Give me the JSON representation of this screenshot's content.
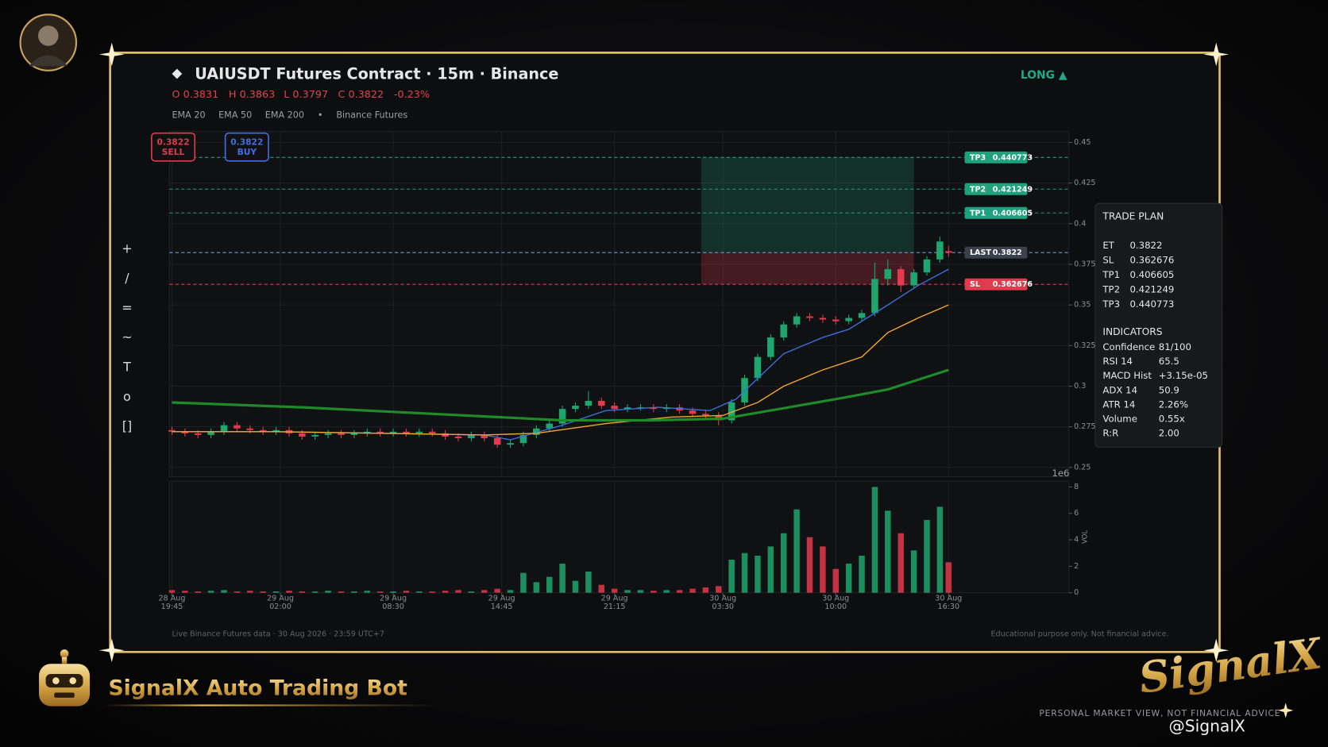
{
  "header": {
    "title": "UAIUSDT Futures Contract  ·  15m  ·  Binance",
    "ohlc": [
      "O 0.3831",
      "H 0.3863",
      "L 0.3797",
      "C 0.3822",
      "-0.23%"
    ],
    "source": "Binance Futures",
    "direction": "LONG ▲"
  },
  "buttons": [
    {
      "price": "0.3822",
      "label": "SELL"
    },
    {
      "price": "0.3822",
      "label": "BUY"
    }
  ],
  "toolbar": [
    "+",
    "/",
    "=",
    "~",
    "T",
    "o",
    "[]"
  ],
  "trade_plan": {
    "title": "TRADE PLAN",
    "rows": [
      [
        "ET",
        "0.3822"
      ],
      [
        "SL",
        "0.362676"
      ],
      [
        "TP1",
        "0.406605"
      ],
      [
        "TP2",
        "0.421249"
      ],
      [
        "TP3",
        "0.440773"
      ]
    ],
    "indicators_title": "INDICATORS",
    "indicators": [
      [
        "Confidence",
        "81/100"
      ],
      [
        "RSI 14",
        "65.5"
      ],
      [
        "MACD Hist",
        "+3.15e-05"
      ],
      [
        "ADX 14",
        "50.9"
      ],
      [
        "ATR 14",
        "2.26%"
      ],
      [
        "Volume",
        "0.55x"
      ],
      [
        "R:R",
        "2.00"
      ]
    ]
  },
  "footer": {
    "left": "Live Binance Futures data  ·  30 Aug 2026  ·  23:59 UTC+7",
    "right": "Educational purpose only. Not financial advice."
  },
  "branding": {
    "bot": "SignalX Auto Trading Bot",
    "logo": "SignalX",
    "tagline": "PERSONAL MARKET VIEW, NOT FINANCIAL ADVICE",
    "watermark": "@SignalX"
  },
  "chart_data": [
    {
      "type": "candlestick",
      "xlim": [
        0,
        179
      ],
      "ylim": [
        0.25,
        0.45
      ],
      "yticks": [
        0.25,
        0.275,
        0.3,
        0.325,
        0.35,
        0.375,
        0.4,
        0.425,
        0.45
      ],
      "xticks": [
        {
          "value": 0,
          "label": "28 Aug\n19:45"
        },
        {
          "value": 25,
          "label": "29 Aug\n02:00"
        },
        {
          "value": 51,
          "label": "29 Aug\n08:30"
        },
        {
          "value": 76,
          "label": "29 Aug\n14:45"
        },
        {
          "value": 102,
          "label": "29 Aug\n21:15"
        },
        {
          "value": 127,
          "label": "30 Aug\n03:30"
        },
        {
          "value": 153,
          "label": "30 Aug\n10:00"
        },
        {
          "value": 179,
          "label": "30 Aug\n16:30"
        }
      ],
      "grid": true,
      "up_color": "#1fa66f",
      "down_color": "#e23a4e",
      "x": [
        0,
        3,
        6,
        9,
        12,
        15,
        18,
        21,
        24,
        27,
        30,
        33,
        36,
        39,
        42,
        45,
        48,
        51,
        54,
        57,
        60,
        63,
        66,
        69,
        72,
        75,
        78,
        81,
        84,
        87,
        90,
        93,
        96,
        99,
        102,
        105,
        108,
        111,
        114,
        117,
        120,
        123,
        126,
        129,
        132,
        135,
        138,
        141,
        144,
        147,
        150,
        153,
        156,
        159,
        162,
        165,
        168,
        171,
        174,
        177,
        179
      ],
      "open": [
        0.273,
        0.272,
        0.271,
        0.27,
        0.272,
        0.276,
        0.274,
        0.273,
        0.272,
        0.273,
        0.271,
        0.269,
        0.27,
        0.271,
        0.27,
        0.271,
        0.272,
        0.271,
        0.272,
        0.271,
        0.272,
        0.271,
        0.269,
        0.268,
        0.27,
        0.268,
        0.264,
        0.265,
        0.27,
        0.274,
        0.277,
        0.286,
        0.288,
        0.291,
        0.288,
        0.286,
        0.287,
        0.287,
        0.286,
        0.287,
        0.285,
        0.283,
        0.282,
        0.279,
        0.29,
        0.305,
        0.318,
        0.33,
        0.338,
        0.343,
        0.342,
        0.341,
        0.34,
        0.342,
        0.345,
        0.366,
        0.372,
        0.362,
        0.37,
        0.378,
        0.3831
      ],
      "high": [
        0.275,
        0.274,
        0.273,
        0.274,
        0.278,
        0.278,
        0.276,
        0.275,
        0.275,
        0.275,
        0.273,
        0.272,
        0.273,
        0.273,
        0.273,
        0.274,
        0.274,
        0.274,
        0.274,
        0.274,
        0.274,
        0.273,
        0.271,
        0.272,
        0.272,
        0.27,
        0.267,
        0.272,
        0.276,
        0.279,
        0.288,
        0.29,
        0.297,
        0.293,
        0.29,
        0.289,
        0.289,
        0.289,
        0.289,
        0.289,
        0.287,
        0.285,
        0.284,
        0.292,
        0.307,
        0.32,
        0.332,
        0.34,
        0.345,
        0.345,
        0.344,
        0.343,
        0.344,
        0.347,
        0.376,
        0.378,
        0.374,
        0.372,
        0.38,
        0.392,
        0.3863
      ],
      "low": [
        0.27,
        0.269,
        0.268,
        0.268,
        0.27,
        0.272,
        0.271,
        0.27,
        0.27,
        0.269,
        0.267,
        0.267,
        0.268,
        0.268,
        0.268,
        0.269,
        0.269,
        0.269,
        0.269,
        0.269,
        0.269,
        0.267,
        0.266,
        0.266,
        0.266,
        0.262,
        0.262,
        0.263,
        0.268,
        0.272,
        0.275,
        0.284,
        0.286,
        0.286,
        0.284,
        0.284,
        0.285,
        0.284,
        0.284,
        0.283,
        0.281,
        0.28,
        0.276,
        0.277,
        0.288,
        0.303,
        0.316,
        0.328,
        0.336,
        0.34,
        0.339,
        0.338,
        0.338,
        0.34,
        0.343,
        0.362,
        0.358,
        0.36,
        0.368,
        0.376,
        0.3797
      ],
      "close": [
        0.272,
        0.271,
        0.27,
        0.272,
        0.276,
        0.274,
        0.273,
        0.272,
        0.273,
        0.271,
        0.269,
        0.27,
        0.271,
        0.27,
        0.271,
        0.272,
        0.271,
        0.272,
        0.271,
        0.272,
        0.271,
        0.269,
        0.268,
        0.27,
        0.268,
        0.264,
        0.265,
        0.27,
        0.274,
        0.277,
        0.286,
        0.288,
        0.291,
        0.288,
        0.286,
        0.287,
        0.287,
        0.286,
        0.287,
        0.285,
        0.283,
        0.282,
        0.279,
        0.29,
        0.305,
        0.318,
        0.33,
        0.338,
        0.343,
        0.342,
        0.341,
        0.34,
        0.342,
        0.345,
        0.366,
        0.372,
        0.362,
        0.37,
        0.378,
        0.389,
        0.3822
      ],
      "series": [
        {
          "name": "EMA 20",
          "color": "#3b6fe0",
          "width": 1.3,
          "x": [
            0,
            24,
            48,
            72,
            78,
            90,
            100,
            112,
            124,
            130,
            141,
            150,
            156,
            165,
            172,
            179
          ],
          "values": [
            0.272,
            0.272,
            0.271,
            0.27,
            0.267,
            0.276,
            0.285,
            0.287,
            0.285,
            0.292,
            0.32,
            0.33,
            0.335,
            0.35,
            0.362,
            0.372
          ]
        },
        {
          "name": "EMA 50",
          "color": "#f0a830",
          "width": 1.3,
          "x": [
            0,
            24,
            48,
            72,
            84,
            100,
            115,
            127,
            135,
            141,
            150,
            159,
            165,
            172,
            179
          ],
          "values": [
            0.272,
            0.272,
            0.271,
            0.27,
            0.271,
            0.277,
            0.281,
            0.282,
            0.29,
            0.3,
            0.31,
            0.318,
            0.333,
            0.342,
            0.35
          ],
          "_": null
        },
        {
          "name": "EMA 200",
          "color": "#1e8a2a",
          "width": 3,
          "x": [
            0,
            30,
            60,
            90,
            110,
            127,
            140,
            155,
            165,
            179
          ],
          "values": [
            0.29,
            0.287,
            0.283,
            0.279,
            0.279,
            0.28,
            0.286,
            0.293,
            0.298,
            0.31
          ]
        }
      ],
      "levels": [
        {
          "name": "TP3",
          "value": 0.440773,
          "color": "#1fa27f"
        },
        {
          "name": "TP2",
          "value": 0.421249,
          "color": "#1fa27f"
        },
        {
          "name": "TP1",
          "value": 0.406605,
          "color": "#1fa27f"
        },
        {
          "name": "LAST",
          "value": 0.3822,
          "color": "#3a404c"
        },
        {
          "name": "SL",
          "value": 0.362676,
          "color": "#e23a4e"
        }
      ],
      "zone_x": [
        122,
        171
      ]
    },
    {
      "type": "bar",
      "ylabel": "VOL",
      "scale_label": "1e6",
      "xlim": [
        0,
        179
      ],
      "ylim": [
        0,
        8
      ],
      "yticks": [
        0,
        2,
        4,
        6,
        8
      ],
      "x": [
        0,
        3,
        6,
        9,
        12,
        15,
        18,
        21,
        24,
        27,
        30,
        33,
        36,
        39,
        42,
        45,
        48,
        51,
        54,
        57,
        60,
        63,
        66,
        69,
        72,
        75,
        78,
        81,
        84,
        87,
        90,
        93,
        96,
        99,
        102,
        105,
        108,
        111,
        114,
        117,
        120,
        123,
        126,
        129,
        132,
        135,
        138,
        141,
        144,
        147,
        150,
        153,
        156,
        159,
        162,
        165,
        168,
        171,
        174,
        177,
        179
      ],
      "values": [
        0.2,
        0.15,
        0.1,
        0.15,
        0.2,
        0.1,
        0.15,
        0.1,
        0.1,
        0.15,
        0.1,
        0.1,
        0.15,
        0.1,
        0.1,
        0.15,
        0.1,
        0.1,
        0.15,
        0.1,
        0.1,
        0.15,
        0.2,
        0.1,
        0.2,
        0.3,
        0.2,
        1.5,
        0.8,
        1.2,
        2.2,
        0.9,
        1.6,
        0.6,
        0.3,
        0.2,
        0.2,
        0.15,
        0.2,
        0.2,
        0.3,
        0.4,
        0.5,
        2.5,
        3.0,
        2.8,
        3.5,
        4.5,
        6.3,
        4.2,
        3.5,
        1.8,
        2.2,
        2.8,
        8,
        6.2,
        4.5,
        3.2,
        5.5,
        6.5,
        2.3
      ]
    }
  ]
}
